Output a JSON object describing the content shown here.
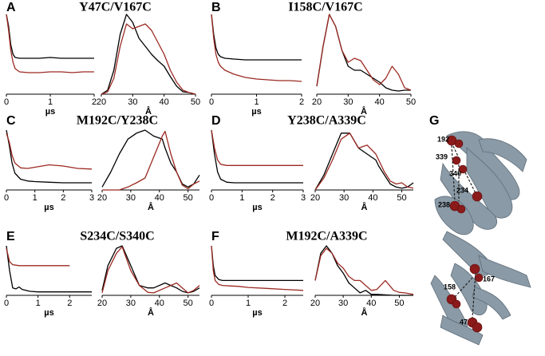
{
  "chart_data": [
    {
      "type": "line",
      "panel": "A",
      "title": "Y47C/V167C",
      "xlabel": "µs",
      "x": [
        0,
        0.05,
        0.1,
        0.15,
        0.2,
        0.3,
        0.5,
        0.75,
        1,
        1.25,
        1.5,
        1.75,
        2
      ],
      "xlim": [
        0,
        2
      ],
      "xticks": [
        0,
        1,
        2
      ],
      "ylim": [
        0,
        1
      ],
      "series": [
        {
          "color": "#000000",
          "values": [
            1,
            0.85,
            0.62,
            0.5,
            0.46,
            0.45,
            0.45,
            0.45,
            0.46,
            0.45,
            0.45,
            0.45,
            0.45
          ]
        },
        {
          "color": "#9b2a22",
          "values": [
            1,
            0.8,
            0.55,
            0.4,
            0.32,
            0.28,
            0.27,
            0.27,
            0.28,
            0.28,
            0.27,
            0.28,
            0.28
          ]
        }
      ]
    },
    {
      "type": "line",
      "xlabel": "Å",
      "x": [
        20,
        22,
        24,
        26,
        28,
        30,
        32,
        34,
        36,
        38,
        40,
        42,
        44,
        46,
        48,
        50
      ],
      "xlim": [
        20,
        50
      ],
      "xticks": [
        20,
        30,
        40,
        50
      ],
      "ylim": [
        0,
        1
      ],
      "series": [
        {
          "color": "#000000",
          "values": [
            0,
            0.05,
            0.3,
            0.75,
            1,
            0.9,
            0.7,
            0.6,
            0.5,
            0.42,
            0.35,
            0.22,
            0.1,
            0.03,
            0.02,
            0
          ]
        },
        {
          "color": "#9b2a22",
          "values": [
            0,
            0.03,
            0.2,
            0.6,
            0.88,
            0.82,
            0.85,
            0.88,
            0.8,
            0.65,
            0.5,
            0.3,
            0.15,
            0.05,
            0.02,
            0
          ]
        }
      ]
    },
    {
      "type": "line",
      "panel": "B",
      "title": "I158C/V167C",
      "xlabel": "µs",
      "x": [
        0,
        0.05,
        0.1,
        0.15,
        0.2,
        0.3,
        0.5,
        0.75,
        1,
        1.25,
        1.5,
        1.75,
        2
      ],
      "xlim": [
        0,
        2
      ],
      "xticks": [
        0,
        1,
        2
      ],
      "ylim": [
        0,
        1
      ],
      "series": [
        {
          "color": "#000000",
          "values": [
            1,
            0.75,
            0.58,
            0.5,
            0.47,
            0.45,
            0.44,
            0.43,
            0.43,
            0.43,
            0.43,
            0.43,
            0.43
          ]
        },
        {
          "color": "#9b2a22",
          "values": [
            1,
            0.7,
            0.5,
            0.4,
            0.35,
            0.3,
            0.25,
            0.21,
            0.19,
            0.18,
            0.17,
            0.17,
            0.16
          ]
        }
      ]
    },
    {
      "type": "line",
      "xlabel": "Å",
      "x": [
        20,
        22,
        24,
        26,
        28,
        30,
        32,
        34,
        36,
        38,
        40,
        42,
        44,
        46,
        48,
        50
      ],
      "xlim": [
        20,
        50
      ],
      "xticks": [
        20,
        30,
        40,
        50
      ],
      "ylim": [
        0,
        1
      ],
      "series": [
        {
          "color": "#000000",
          "values": [
            0.1,
            0.6,
            1,
            0.85,
            0.55,
            0.35,
            0.3,
            0.3,
            0.25,
            0.2,
            0.15,
            0.08,
            0.05,
            0.04,
            0.05,
            0.05
          ]
        },
        {
          "color": "#9b2a22",
          "values": [
            0.1,
            0.6,
            1,
            0.85,
            0.55,
            0.4,
            0.45,
            0.42,
            0.3,
            0.18,
            0.12,
            0.2,
            0.35,
            0.25,
            0.08,
            0.05
          ]
        }
      ]
    },
    {
      "type": "line",
      "panel": "C",
      "title": "M192C/Y238C",
      "xlabel": "µs",
      "x": [
        0,
        0.1,
        0.2,
        0.3,
        0.5,
        0.75,
        1,
        1.5,
        2,
        2.5,
        3
      ],
      "xlim": [
        0,
        3
      ],
      "xticks": [
        0,
        1,
        2,
        3
      ],
      "ylim": [
        0,
        1
      ],
      "series": [
        {
          "color": "#000000",
          "values": [
            1,
            0.75,
            0.45,
            0.28,
            0.18,
            0.15,
            0.14,
            0.13,
            0.12,
            0.12,
            0.12
          ]
        },
        {
          "color": "#9b2a22",
          "values": [
            0.95,
            0.8,
            0.58,
            0.45,
            0.37,
            0.36,
            0.38,
            0.42,
            0.4,
            0.36,
            0.35
          ]
        }
      ]
    },
    {
      "type": "line",
      "xlabel": "Å",
      "x": [
        20,
        23,
        26,
        29,
        32,
        35,
        38,
        41,
        42,
        44,
        46,
        48,
        50,
        52,
        54
      ],
      "xlim": [
        20,
        54
      ],
      "xticks": [
        20,
        30,
        40,
        50
      ],
      "ylim": [
        0,
        1
      ],
      "series": [
        {
          "color": "#000000",
          "values": [
            0.05,
            0.3,
            0.6,
            0.85,
            0.95,
            1,
            0.9,
            0.85,
            0.7,
            0.45,
            0.3,
            0.1,
            0.05,
            0.1,
            0.25
          ]
        },
        {
          "color": "#9b2a22",
          "values": [
            0,
            0,
            0,
            0.05,
            0.12,
            0.2,
            0.55,
            0.9,
            0.98,
            0.6,
            0.3,
            0.08,
            0.02,
            0.1,
            0.15
          ]
        }
      ]
    },
    {
      "type": "line",
      "panel": "D",
      "title": "Y238C/A339C",
      "xlabel": "µs",
      "x": [
        0,
        0.1,
        0.2,
        0.3,
        0.5,
        0.75,
        1,
        1.5,
        2,
        2.5,
        3
      ],
      "xlim": [
        0,
        3
      ],
      "xticks": [
        0,
        1,
        2,
        3
      ],
      "ylim": [
        0,
        1
      ],
      "series": [
        {
          "color": "#000000",
          "values": [
            1,
            0.6,
            0.3,
            0.18,
            0.13,
            0.12,
            0.12,
            0.12,
            0.12,
            0.12,
            0.12
          ]
        },
        {
          "color": "#9b2a22",
          "values": [
            1,
            0.7,
            0.5,
            0.43,
            0.41,
            0.41,
            0.41,
            0.41,
            0.41,
            0.41,
            0.41
          ]
        }
      ]
    },
    {
      "type": "line",
      "xlabel": "Å",
      "x": [
        20,
        23,
        26,
        29,
        32,
        35,
        38,
        41,
        42,
        44,
        46,
        48,
        50,
        52,
        54
      ],
      "xlim": [
        20,
        54
      ],
      "xticks": [
        20,
        30,
        40,
        50
      ],
      "ylim": [
        0,
        1
      ],
      "series": [
        {
          "color": "#000000",
          "values": [
            0,
            0.25,
            0.6,
            0.95,
            0.95,
            0.7,
            0.6,
            0.5,
            0.4,
            0.25,
            0.1,
            0.05,
            0.03,
            0.05,
            0.12
          ]
        },
        {
          "color": "#9b2a22",
          "values": [
            0,
            0.2,
            0.5,
            0.85,
            0.95,
            0.7,
            0.75,
            0.6,
            0.5,
            0.3,
            0.15,
            0.1,
            0.12,
            0.05,
            0.03
          ]
        }
      ]
    },
    {
      "type": "line",
      "panel": "E",
      "title": "S234C/S340C",
      "xlabel": "µs",
      "x": [
        0,
        0.1,
        0.2,
        0.3,
        0.4,
        0.5,
        0.75,
        1,
        1.5,
        2,
        2.5,
        2.7
      ],
      "xlim": [
        0,
        2.7
      ],
      "xticks": [
        0,
        1,
        2
      ],
      "ylim": [
        0,
        1
      ],
      "series": [
        {
          "color": "#000000",
          "values": [
            1,
            0.5,
            0.15,
            0.13,
            0.17,
            0.12,
            0.08,
            0.07,
            0.07,
            0.07,
            0.07,
            0.07
          ]
        },
        {
          "color": "#9b2a22",
          "values": [
            0.95,
            0.68,
            0.62,
            0.61,
            0.6,
            0.6,
            0.6,
            0.6,
            0.6,
            0.6,
            null,
            null
          ]
        }
      ]
    },
    {
      "type": "line",
      "xlabel": "Å",
      "x": [
        20,
        22,
        25,
        27,
        30,
        33,
        36,
        38,
        42,
        44,
        46,
        48,
        50,
        52,
        54
      ],
      "xlim": [
        20,
        54
      ],
      "xticks": [
        20,
        30,
        40,
        50
      ],
      "ylim": [
        0,
        1
      ],
      "series": [
        {
          "color": "#000000",
          "values": [
            0.1,
            0.6,
            0.95,
            1,
            0.6,
            0.2,
            0.15,
            0.15,
            0.25,
            0.2,
            0.15,
            0.08,
            0.05,
            0.08,
            0.15
          ]
        },
        {
          "color": "#9b2a22",
          "values": [
            0.05,
            0.5,
            0.85,
            0.98,
            0.5,
            0.2,
            0.06,
            0.05,
            0.15,
            0.2,
            0.25,
            0.15,
            0.05,
            0.1,
            0.2
          ]
        }
      ]
    },
    {
      "type": "line",
      "panel": "F",
      "title": "M192C/A339C",
      "xlabel": "µs",
      "x": [
        0,
        0.05,
        0.1,
        0.2,
        0.3,
        0.5,
        0.75,
        1,
        1.5,
        2,
        2.5
      ],
      "xlim": [
        0,
        2.5
      ],
      "xticks": [
        0,
        1,
        2
      ],
      "ylim": [
        0,
        1
      ],
      "series": [
        {
          "color": "#000000",
          "values": [
            1,
            0.6,
            0.4,
            0.32,
            0.3,
            0.3,
            0.3,
            0.3,
            0.3,
            0.3,
            0.3
          ]
        },
        {
          "color": "#9b2a22",
          "values": [
            1,
            0.5,
            0.3,
            0.22,
            0.2,
            0.19,
            0.18,
            0.16,
            0.14,
            0.12,
            0.1
          ]
        }
      ]
    },
    {
      "type": "line",
      "xlabel": "Å",
      "x": [
        20,
        22,
        24,
        26,
        28,
        30,
        32,
        34,
        36,
        38,
        40,
        42,
        45,
        48,
        50,
        52,
        55
      ],
      "xlim": [
        20,
        55
      ],
      "xticks": [
        20,
        30,
        40,
        50
      ],
      "ylim": [
        0,
        1
      ],
      "series": [
        {
          "color": "#000000",
          "values": [
            0.3,
            0.85,
            1,
            0.85,
            0.6,
            0.45,
            0.25,
            0.15,
            0.05,
            0.1,
            0.02,
            0.02,
            0.01,
            0,
            0,
            0,
            0
          ]
        },
        {
          "color": "#9b2a22",
          "values": [
            0.3,
            0.8,
            0.95,
            0.85,
            0.65,
            0.55,
            0.38,
            0.3,
            0.3,
            0.2,
            0.1,
            0.12,
            0.3,
            0.1,
            0.06,
            0.05,
            0.02
          ]
        }
      ]
    }
  ],
  "structure": {
    "label": "G",
    "residues": [
      "192",
      "339",
      "340",
      "234",
      "238",
      "167",
      "158",
      "47"
    ]
  }
}
